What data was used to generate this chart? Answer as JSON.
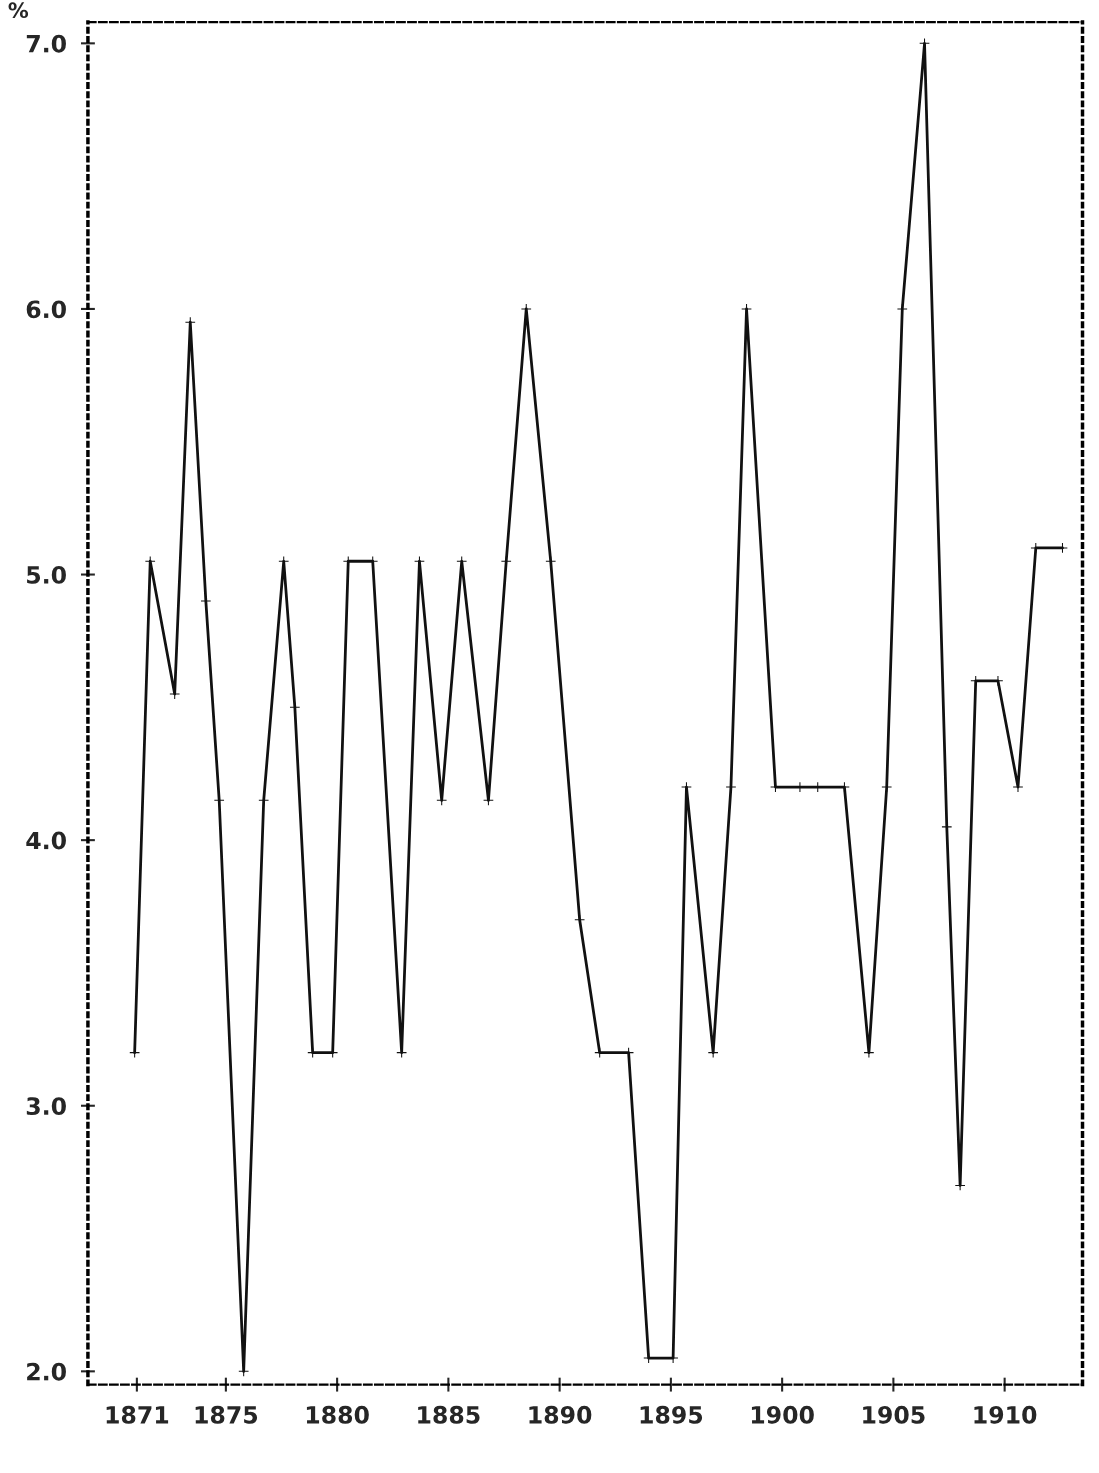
{
  "chart_data": {
    "type": "line",
    "ylabel": "%",
    "x": [
      1870.9,
      1871.6,
      1872.7,
      1873.4,
      1874.1,
      1874.7,
      1875.8,
      1876.7,
      1877.6,
      1878.1,
      1878.9,
      1879.8,
      1880.5,
      1881.6,
      1882.9,
      1883.7,
      1884.7,
      1885.6,
      1886.8,
      1887.6,
      1888.5,
      1889.6,
      1890.9,
      1891.8,
      1893.1,
      1894.0,
      1895.1,
      1895.7,
      1896.9,
      1897.7,
      1898.4,
      1899.7,
      1900.8,
      1901.6,
      1902.8,
      1903.9,
      1904.7,
      1905.4,
      1906.4,
      1907.4,
      1908.0,
      1908.7,
      1909.7,
      1910.6,
      1911.4,
      1912.6
    ],
    "series": [
      {
        "color": "#111111",
        "values": [
          3.2,
          5.05,
          4.55,
          5.95,
          4.9,
          4.15,
          2.0,
          4.15,
          5.05,
          4.5,
          3.2,
          3.2,
          5.05,
          5.05,
          3.2,
          5.05,
          4.15,
          5.05,
          4.15,
          5.05,
          6.0,
          5.05,
          3.7,
          3.2,
          3.2,
          2.05,
          2.05,
          4.2,
          3.2,
          4.2,
          6.0,
          4.2,
          4.2,
          4.2,
          4.2,
          3.2,
          4.2,
          6.0,
          7.0,
          4.05,
          2.7,
          4.6,
          4.6,
          4.2,
          5.1,
          5.1
        ]
      }
    ],
    "xlim": [
      1868.8,
      1913.5
    ],
    "ylim": [
      1.95,
      7.08
    ],
    "xticks": [
      1871,
      1875,
      1880,
      1885,
      1890,
      1895,
      1900,
      1905,
      1910
    ],
    "yticks": [
      {
        "value": 2,
        "label": "2.0"
      },
      {
        "value": 3,
        "label": "3.0"
      },
      {
        "value": 4,
        "label": "4.0"
      },
      {
        "value": 5,
        "label": "5.0"
      },
      {
        "value": 6,
        "label": "6.0"
      },
      {
        "value": 7,
        "label": "7.0"
      }
    ],
    "marker": "cross",
    "line_style": "solid",
    "grid": false,
    "legend": false
  }
}
